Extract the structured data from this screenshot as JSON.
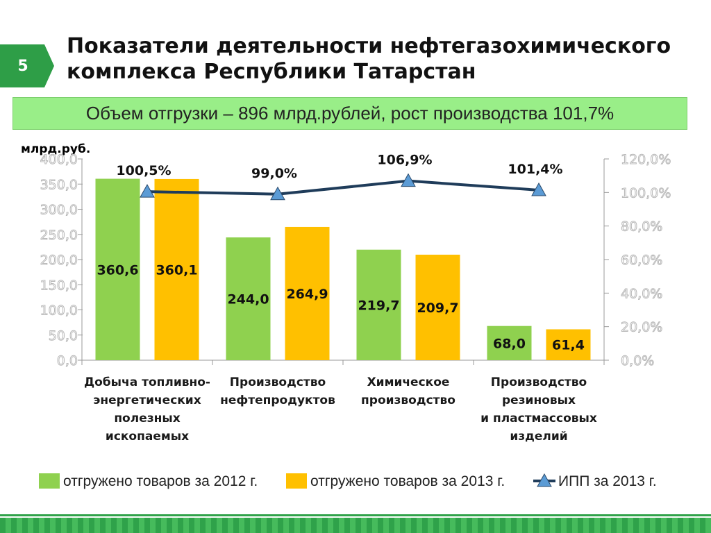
{
  "slide": {
    "number": "5",
    "title": "Показатели деятельности нефтегазохимического комплекса Республики Татарстан",
    "subtitle": "Объем отгрузки – 896 млрд.рублей, рост производства 101,7%"
  },
  "colors": {
    "badge": "#2e9e47",
    "subtitle_bg": "#99ee88",
    "series_2012": "#8fd14f",
    "series_2013": "#ffc000",
    "ipp_line": "#1f3c5a",
    "ipp_marker": "#5b9bd5",
    "footer": "#2fa24a"
  },
  "chart_data": {
    "type": "bar",
    "unit_label": "млрд.руб.",
    "categories": [
      [
        "Добыча топливно-",
        "энергетических",
        "полезных",
        "ископаемых"
      ],
      [
        "Производство",
        "нефтепродуктов"
      ],
      [
        "Химическое",
        "производство"
      ],
      [
        "Производство",
        "резиновых",
        "и пластмассовых",
        "изделий"
      ]
    ],
    "series": [
      {
        "name": "отгружено товаров за 2012 г.",
        "values": [
          360.6,
          244.0,
          219.7,
          68.0
        ],
        "labels": [
          "360,6",
          "244,0",
          "219,7",
          "68,0"
        ]
      },
      {
        "name": "отгружено товаров за 2013 г.",
        "values": [
          360.1,
          264.9,
          209.7,
          61.4
        ],
        "labels": [
          "360,1",
          "264,9",
          "209,7",
          "61,4"
        ]
      }
    ],
    "line_series": {
      "name": "ИПП за 2013 г.",
      "axis": "right",
      "values": [
        100.5,
        99.0,
        106.9,
        101.4
      ],
      "labels": [
        "100,5%",
        "99,0%",
        "106,9%",
        "101,4%"
      ]
    },
    "y_left": {
      "min": 0,
      "max": 400,
      "ticks": [
        "0,0",
        "50,0",
        "100,0",
        "150,0",
        "200,0",
        "250,0",
        "300,0",
        "350,0",
        "400,0"
      ]
    },
    "y_right": {
      "min": 0,
      "max": 120,
      "ticks": [
        "0,0%",
        "20,0%",
        "40,0%",
        "60,0%",
        "80,0%",
        "100,0%",
        "120,0%"
      ]
    },
    "legend_position": "bottom"
  }
}
